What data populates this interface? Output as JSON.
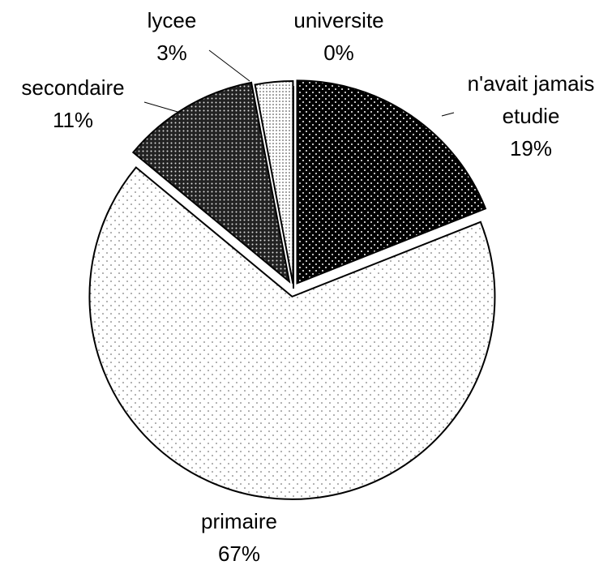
{
  "chart_data": {
    "type": "pie",
    "categories": [
      "n'avait jamais etudie",
      "primaire",
      "secondaire",
      "lycee",
      "universite"
    ],
    "values": [
      19,
      67,
      11,
      3,
      0
    ],
    "value_labels": [
      "19%",
      "67%",
      "11%",
      "3%",
      "0%"
    ]
  }
}
